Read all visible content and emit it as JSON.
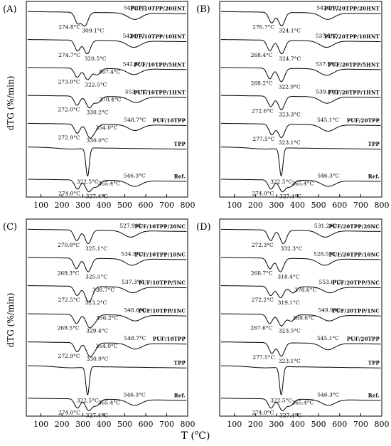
{
  "figure": {
    "ylabel": "dTG (%/min)",
    "xlabel": "T (°C)",
    "xlabel_parts": {
      "prefix": "T (",
      "sup": "o",
      "unit": "C)"
    }
  },
  "chart_data": [
    {
      "type": "line",
      "panel_label": "(A)",
      "xlim": [
        30,
        800
      ],
      "xticks": [
        100,
        200,
        300,
        400,
        500,
        600,
        700,
        800
      ],
      "grid": false,
      "series": [
        {
          "name": "PUF/10TPP/20HNT",
          "peaks": [
            274.8,
            309.1,
            547.1
          ]
        },
        {
          "name": "PUF/10TPP/10HNT",
          "peaks": [
            274.7,
            320.5,
            542.9
          ]
        },
        {
          "name": "PUF/10TPP/5HNT",
          "peaks": [
            273.0,
            322.5,
            367.4,
            542.8
          ]
        },
        {
          "name": "PUF/10TPP/1HNT",
          "peaks": [
            272.0,
            330.2,
            370.4,
            553.4
          ]
        },
        {
          "name": "PUF/10TPP",
          "peaks": [
            272.9,
            330.0,
            354.0,
            548.7
          ]
        },
        {
          "name": "TPP",
          "peaks": [
            322.5
          ]
        },
        {
          "name": "Ref.",
          "peaks": [
            274.0,
            327.4,
            365.4,
            546.3
          ]
        }
      ]
    },
    {
      "type": "line",
      "panel_label": "(B)",
      "xlim": [
        30,
        800
      ],
      "xticks": [
        100,
        200,
        300,
        400,
        500,
        600,
        700,
        800
      ],
      "grid": false,
      "series": [
        {
          "name": "PUF/20TPP/20HNT",
          "peaks": [
            276.7,
            324.1,
            542.9
          ]
        },
        {
          "name": "PUF/20TPP/10HNT",
          "peaks": [
            268.4,
            324.7,
            537.5
          ]
        },
        {
          "name": "PUF/20TPP/5HNT",
          "peaks": [
            268.2,
            322.9,
            537.5
          ]
        },
        {
          "name": "PUF/20TPP/1HNT",
          "peaks": [
            272.6,
            323.3,
            539.1
          ]
        },
        {
          "name": "PUF/20TPP",
          "peaks": [
            277.5,
            323.1,
            545.1
          ]
        },
        {
          "name": "TPP",
          "peaks": [
            322.5
          ]
        },
        {
          "name": "Ref.",
          "peaks": [
            274.0,
            327.4,
            365.4,
            546.3
          ]
        }
      ]
    },
    {
      "type": "line",
      "panel_label": "(C)",
      "xlim": [
        30,
        800
      ],
      "xticks": [
        100,
        200,
        300,
        400,
        500,
        600,
        700,
        800
      ],
      "grid": false,
      "series": [
        {
          "name": "PUF/10TPP/20NC",
          "peaks": [
            270.8,
            325.1,
            527.9
          ]
        },
        {
          "name": "PUF/10TPP/10NC",
          "peaks": [
            269.3,
            325.5,
            534.8
          ]
        },
        {
          "name": "PUF/10TPP/5NC",
          "peaks": [
            272.5,
            323.2,
            338.7,
            537.3
          ]
        },
        {
          "name": "PUF/10TPP/1NC",
          "peaks": [
            269.5,
            329.4,
            356.2,
            548.6
          ]
        },
        {
          "name": "PUF/10TPP",
          "peaks": [
            272.9,
            330.0,
            354.0,
            548.7
          ]
        },
        {
          "name": "TPP",
          "peaks": [
            322.5
          ]
        },
        {
          "name": "Ref.",
          "peaks": [
            274.0,
            327.4,
            365.4,
            546.3
          ]
        }
      ]
    },
    {
      "type": "line",
      "panel_label": "(D)",
      "xlim": [
        30,
        800
      ],
      "xticks": [
        100,
        200,
        300,
        400,
        500,
        600,
        700,
        800
      ],
      "grid": false,
      "series": [
        {
          "name": "PUF/20TPP/20NC",
          "peaks": [
            272.3,
            332.3,
            531.2
          ]
        },
        {
          "name": "PUF/20TPP/10NC",
          "peaks": [
            268.7,
            318.4,
            528.5
          ]
        },
        {
          "name": "PUF/20TPP/5NC",
          "peaks": [
            272.2,
            319.1,
            378.6,
            553.6
          ]
        },
        {
          "name": "PUF/20TPP/1NC",
          "peaks": [
            267.6,
            323.5,
            369.6,
            549.9
          ]
        },
        {
          "name": "PUF/20TPP",
          "peaks": [
            277.5,
            323.1,
            545.1
          ]
        },
        {
          "name": "TPP",
          "peaks": [
            322.5
          ]
        },
        {
          "name": "Ref.",
          "peaks": [
            274.0,
            327.4,
            365.4,
            546.3
          ]
        }
      ]
    }
  ]
}
